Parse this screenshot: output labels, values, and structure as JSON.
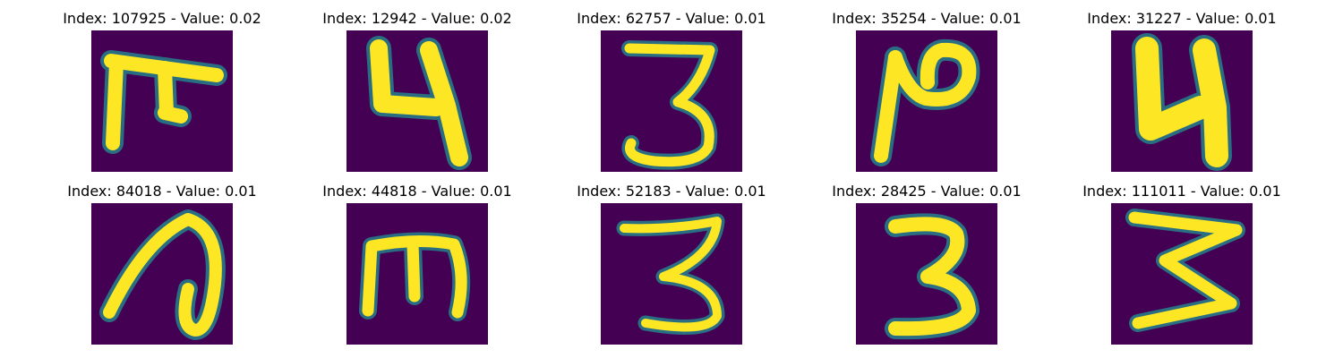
{
  "figure": {
    "colors": {
      "background": "#ffffff",
      "image_low": "#440154",
      "image_mid": "#23898e",
      "image_high": "#fde725"
    },
    "panels": [
      {
        "title": "Index: 107925 - Value: 0.02",
        "glyph": "rotated-e-shape"
      },
      {
        "title": "Index: 12942 - Value: 0.02",
        "glyph": "n-shape"
      },
      {
        "title": "Index: 62757 - Value: 0.01",
        "glyph": "three"
      },
      {
        "title": "Index: 35254 - Value: 0.01",
        "glyph": "n-loop-shape"
      },
      {
        "title": "Index: 31227 - Value: 0.01",
        "glyph": "n-shape-bold"
      },
      {
        "title": "Index: 84018 - Value: 0.01",
        "glyph": "loop-stroke"
      },
      {
        "title": "Index: 44818 - Value: 0.01",
        "glyph": "m-shape"
      },
      {
        "title": "Index: 52183 - Value: 0.01",
        "glyph": "three"
      },
      {
        "title": "Index: 28425 - Value: 0.01",
        "glyph": "three-bold"
      },
      {
        "title": "Index: 111011 - Value: 0.01",
        "glyph": "three-angular"
      }
    ]
  }
}
